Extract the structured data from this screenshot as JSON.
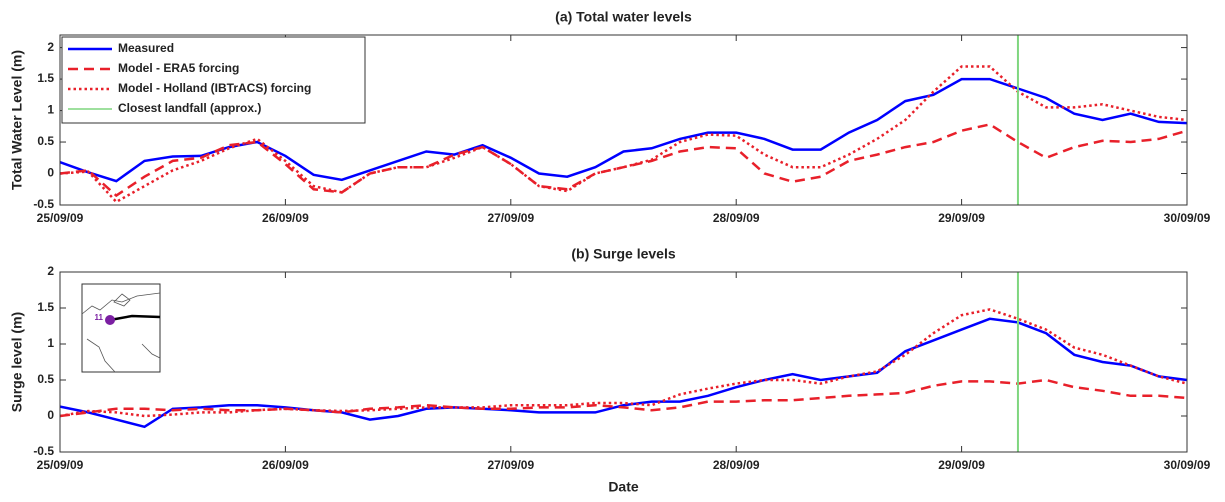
{
  "chart_data": [
    {
      "type": "line",
      "title": "(a) Total water levels",
      "ylabel": "Total Water Level (m)",
      "x": [
        25,
        25.125,
        25.25,
        25.375,
        25.5,
        25.625,
        25.75,
        25.875,
        26,
        26.125,
        26.25,
        26.375,
        26.5,
        26.625,
        26.75,
        26.875,
        27,
        27.125,
        27.25,
        27.375,
        27.5,
        27.625,
        27.75,
        27.875,
        28,
        28.125,
        28.25,
        28.375,
        28.5,
        28.625,
        28.75,
        28.875,
        29,
        29.125,
        29.25,
        29.375,
        29.5,
        29.625,
        29.75,
        29.875,
        30
      ],
      "xlim": [
        25,
        30
      ],
      "xticks": [
        {
          "value": 25,
          "label": "25/09/09"
        },
        {
          "value": 26,
          "label": "26/09/09"
        },
        {
          "value": 27,
          "label": "27/09/09"
        },
        {
          "value": 28,
          "label": "28/09/09"
        },
        {
          "value": 29,
          "label": "29/09/09"
        },
        {
          "value": 30,
          "label": "30/09/09"
        }
      ],
      "ylim": [
        -0.5,
        2.2
      ],
      "yticks": [
        -0.5,
        0,
        0.5,
        1,
        1.5,
        2
      ],
      "legend": "upper left",
      "series": [
        {
          "name": "Measured",
          "color": "#0000ff",
          "dash": "solid",
          "values": [
            0.18,
            0.02,
            -0.12,
            0.2,
            0.27,
            0.28,
            0.42,
            0.5,
            0.28,
            -0.02,
            -0.1,
            0.05,
            0.2,
            0.35,
            0.3,
            0.45,
            0.25,
            0,
            -0.05,
            0.1,
            0.35,
            0.4,
            0.55,
            0.65,
            0.65,
            0.55,
            0.38,
            0.38,
            0.65,
            0.85,
            1.15,
            1.25,
            1.5,
            1.5,
            1.35,
            1.2,
            0.95,
            0.85,
            0.95,
            0.82,
            0.8
          ]
        },
        {
          "name": "Model - ERA5 forcing",
          "color": "#e8202a",
          "dash": "dashed",
          "values": [
            0,
            0.05,
            -0.35,
            -0.05,
            0.2,
            0.25,
            0.45,
            0.5,
            0.15,
            -0.25,
            -0.3,
            0,
            0.1,
            0.1,
            0.3,
            0.42,
            0.15,
            -0.2,
            -0.25,
            0,
            0.1,
            0.2,
            0.35,
            0.42,
            0.4,
            0,
            -0.13,
            -0.05,
            0.2,
            0.3,
            0.42,
            0.5,
            0.68,
            0.78,
            0.5,
            0.25,
            0.42,
            0.52,
            0.5,
            0.55,
            0.68
          ]
        },
        {
          "name": "Model - Holland (IBTrACS) forcing",
          "color": "#e8202a",
          "dash": "dotted",
          "values": [
            0,
            0.03,
            -0.45,
            -0.2,
            0.05,
            0.2,
            0.4,
            0.55,
            0.2,
            -0.2,
            -0.3,
            0,
            0.1,
            0.1,
            0.25,
            0.42,
            0.15,
            -0.2,
            -0.28,
            0,
            0.1,
            0.22,
            0.5,
            0.62,
            0.6,
            0.3,
            0.1,
            0.1,
            0.3,
            0.55,
            0.85,
            1.3,
            1.7,
            1.7,
            1.3,
            1.05,
            1.05,
            1.1,
            1,
            0.9,
            0.85
          ]
        }
      ],
      "landfall": {
        "name": "Closest landfall (approx.)",
        "color": "#7fd67f",
        "x": 29.25
      }
    },
    {
      "type": "line",
      "title": "(b) Surge levels",
      "ylabel": "Surge level (m)",
      "xlabel": "Date",
      "inset_label": "11",
      "x": [
        25,
        25.125,
        25.25,
        25.375,
        25.5,
        25.625,
        25.75,
        25.875,
        26,
        26.125,
        26.25,
        26.375,
        26.5,
        26.625,
        26.75,
        26.875,
        27,
        27.125,
        27.25,
        27.375,
        27.5,
        27.625,
        27.75,
        27.875,
        28,
        28.125,
        28.25,
        28.375,
        28.5,
        28.625,
        28.75,
        28.875,
        29,
        29.125,
        29.25,
        29.375,
        29.5,
        29.625,
        29.75,
        29.875,
        30
      ],
      "xlim": [
        25,
        30
      ],
      "xticks": [
        {
          "value": 25,
          "label": "25/09/09"
        },
        {
          "value": 26,
          "label": "26/09/09"
        },
        {
          "value": 27,
          "label": "27/09/09"
        },
        {
          "value": 28,
          "label": "28/09/09"
        },
        {
          "value": 29,
          "label": "29/09/09"
        },
        {
          "value": 30,
          "label": "30/09/09"
        }
      ],
      "ylim": [
        -0.5,
        2
      ],
      "yticks": [
        -0.5,
        0,
        0.5,
        1,
        1.5,
        2
      ],
      "series": [
        {
          "color": "#0000ff",
          "dash": "solid",
          "values": [
            0.13,
            0.05,
            -0.05,
            -0.15,
            0.1,
            0.12,
            0.15,
            0.15,
            0.12,
            0.08,
            0.05,
            -0.05,
            0,
            0.1,
            0.12,
            0.1,
            0.08,
            0.05,
            0.05,
            0.05,
            0.15,
            0.2,
            0.2,
            0.28,
            0.4,
            0.5,
            0.58,
            0.5,
            0.55,
            0.6,
            0.9,
            1.05,
            1.2,
            1.35,
            1.3,
            1.15,
            0.85,
            0.75,
            0.7,
            0.55,
            0.5
          ]
        },
        {
          "color": "#e8202a",
          "dash": "dashed",
          "values": [
            0,
            0.05,
            0.1,
            0.1,
            0.08,
            0.1,
            0.08,
            0.08,
            0.1,
            0.08,
            0.05,
            0.1,
            0.12,
            0.15,
            0.12,
            0.1,
            0.1,
            0.12,
            0.12,
            0.15,
            0.12,
            0.08,
            0.12,
            0.2,
            0.2,
            0.22,
            0.22,
            0.25,
            0.28,
            0.3,
            0.32,
            0.42,
            0.48,
            0.48,
            0.45,
            0.5,
            0.4,
            0.35,
            0.28,
            0.28,
            0.25
          ]
        },
        {
          "color": "#e8202a",
          "dash": "dotted",
          "values": [
            0,
            0.07,
            0.05,
            0,
            0.02,
            0.05,
            0.05,
            0.08,
            0.1,
            0.08,
            0.07,
            0.08,
            0.1,
            0.12,
            0.12,
            0.12,
            0.15,
            0.15,
            0.15,
            0.18,
            0.18,
            0.15,
            0.3,
            0.38,
            0.45,
            0.5,
            0.5,
            0.45,
            0.55,
            0.62,
            0.85,
            1.15,
            1.4,
            1.48,
            1.35,
            1.2,
            0.95,
            0.85,
            0.7,
            0.55,
            0.45
          ]
        }
      ],
      "landfall": {
        "color": "#7fd67f",
        "x": 29.25
      }
    }
  ]
}
